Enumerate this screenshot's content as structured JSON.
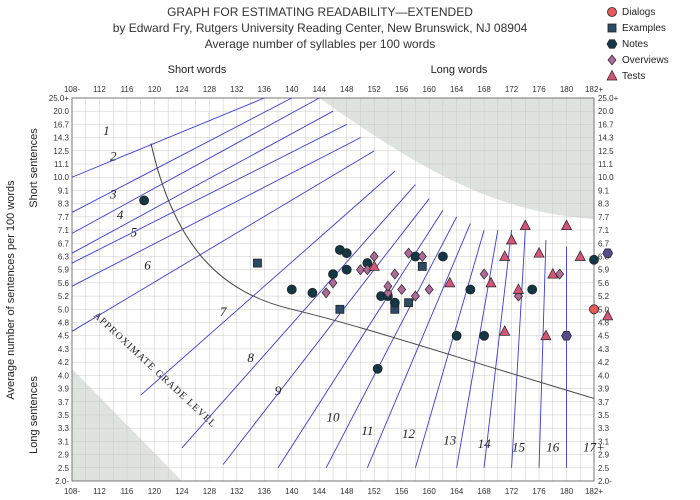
{
  "title_lines": [
    "GRAPH FOR ESTIMATING READABILITY—EXTENDED",
    "by Edward Fry, Rutgers University Reading Center, New Brunswick, NJ 08904",
    "Average number of syllables per 100 words"
  ],
  "chart_data": {
    "type": "scatter",
    "x_label_top_left": "Short words",
    "x_label_top_right": "Long words",
    "y_label": "Average number of sentences per 100 words",
    "y_label_top": "Short sentences",
    "y_label_bottom": "Long sentences",
    "x_ticks": [
      "108-",
      "112",
      "116",
      "120",
      "124",
      "128",
      "132",
      "136",
      "140",
      "144",
      "148",
      "152",
      "156",
      "160",
      "164",
      "168",
      "172",
      "176",
      "180",
      "182+"
    ],
    "y_ticks": [
      "2.0-",
      "2.5",
      "2.9",
      "3.1",
      "3.3",
      "3.5",
      "3.7",
      "3.9",
      "4.0",
      "4.2",
      "4.3",
      "4.5",
      "4.8",
      "5.0",
      "5.2",
      "5.6",
      "5.9",
      "6.3",
      "6.7",
      "7.1",
      "7.7",
      "8.3",
      "9.1",
      "10.0",
      "11.1",
      "12.5",
      "14.3",
      "16.7",
      "20.0",
      "25.0+"
    ],
    "grade_labels": [
      "1",
      "2",
      "3",
      "4",
      "5",
      "6",
      "7",
      "8",
      "9",
      "10",
      "11",
      "12",
      "13",
      "14",
      "15",
      "16",
      "17+"
    ],
    "curve_label": "APPROXIMATE GRADE LEVEL",
    "colors": {
      "grade_lines": "#3b3bd6",
      "grid": "#c8c8c8",
      "shade": "#dfe3df",
      "dialogs": "#e85a5a",
      "examples": "#2b4a66",
      "notes": "#123845",
      "overviews": "#b06a9a",
      "tests": "#d45577"
    },
    "series": [
      {
        "name": "Dialogs",
        "marker": "circle",
        "points": [
          [
            182,
            5.0
          ]
        ]
      },
      {
        "name": "Examples",
        "marker": "square",
        "points": [
          [
            135,
            6.1
          ],
          [
            147,
            5.0
          ],
          [
            155,
            5.0
          ],
          [
            157,
            5.1
          ],
          [
            159,
            6.0
          ]
        ]
      },
      {
        "name": "Notes",
        "marker": "circle",
        "points": [
          [
            118.5,
            8.5
          ],
          [
            140,
            5.4
          ],
          [
            143,
            5.3
          ],
          [
            146,
            5.8
          ],
          [
            147,
            6.5
          ],
          [
            148,
            5.9
          ],
          [
            148,
            6.4
          ],
          [
            151,
            6.1
          ],
          [
            153,
            5.2
          ],
          [
            154,
            5.2
          ],
          [
            155,
            5.1
          ],
          [
            158,
            6.3
          ],
          [
            162,
            6.3
          ],
          [
            164,
            4.5
          ],
          [
            166,
            5.4
          ],
          [
            168,
            4.5
          ],
          [
            175,
            5.4
          ],
          [
            182,
            6.2
          ],
          [
            152.5,
            4.1
          ]
        ]
      },
      {
        "name": "Overviews",
        "marker": "hexagon",
        "points": [
          [
            180,
            4.5
          ],
          [
            183,
            6.4
          ]
        ]
      },
      {
        "name": "Overviews (diamond)",
        "marker": "diamond",
        "points": [
          [
            145,
            5.3
          ],
          [
            146,
            5.6
          ],
          [
            150,
            5.9
          ],
          [
            151,
            5.9
          ],
          [
            152,
            6.3
          ],
          [
            154,
            5.3
          ],
          [
            154,
            5.5
          ],
          [
            155,
            5.8
          ],
          [
            156,
            5.4
          ],
          [
            157,
            6.4
          ],
          [
            158,
            5.2
          ],
          [
            159,
            6.3
          ],
          [
            160,
            5.4
          ],
          [
            168,
            5.8
          ],
          [
            173,
            5.2
          ],
          [
            179,
            5.8
          ]
        ]
      },
      {
        "name": "Tests",
        "marker": "triangle",
        "points": [
          [
            152,
            6.0
          ],
          [
            163,
            5.6
          ],
          [
            169,
            5.6
          ],
          [
            171,
            6.3
          ],
          [
            172,
            6.8
          ],
          [
            173,
            5.4
          ],
          [
            174,
            7.3
          ],
          [
            176,
            6.4
          ],
          [
            177,
            4.5
          ],
          [
            178,
            5.8
          ],
          [
            180,
            7.3
          ],
          [
            181,
            6.3
          ],
          [
            183,
            4.9
          ],
          [
            171,
            4.6
          ]
        ]
      }
    ],
    "legend": [
      "Dialogs",
      "Examples",
      "Notes",
      "Overviews",
      "Tests"
    ],
    "legend_position": "top-right"
  }
}
